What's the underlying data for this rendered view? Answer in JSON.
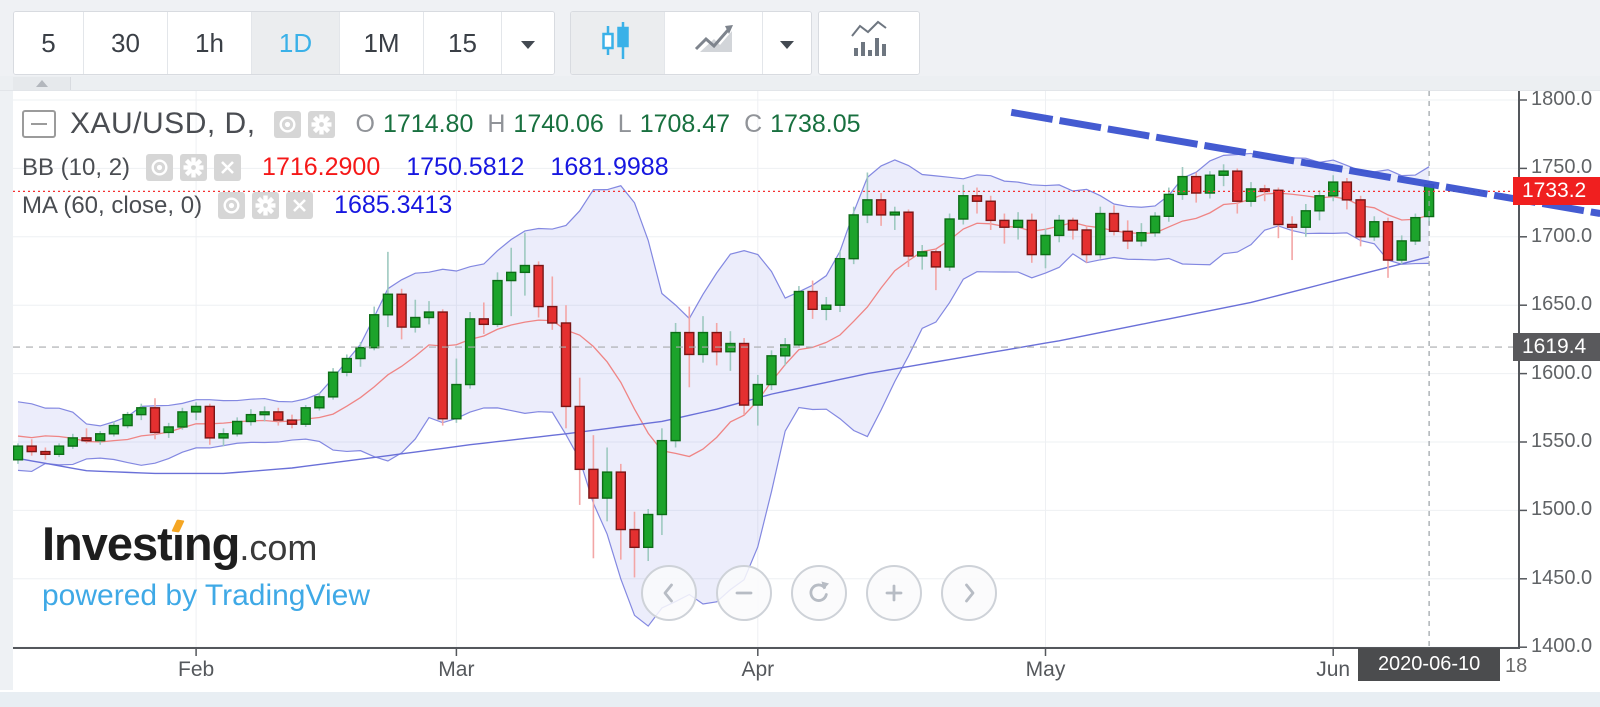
{
  "toolbar": {
    "timeframes": [
      "5",
      "30",
      "1h",
      "1D",
      "1M",
      "15"
    ],
    "active_timeframe": "1D",
    "icons": [
      "chevron-down-icon",
      "candlestick-chart-icon",
      "line-area-chart-icon",
      "chevron-down-icon",
      "indicators-icon"
    ],
    "active_chart_type": "candlestick"
  },
  "legend": {
    "symbol_title": "XAU/USD, D,",
    "ohlc": {
      "open_label": "O",
      "open": "1714.80",
      "high_label": "H",
      "high": "1740.06",
      "low_label": "L",
      "low": "1708.47",
      "close_label": "C",
      "close": "1738.05"
    },
    "bb": {
      "label": "BB (10, 2)",
      "basis": "1716.2900",
      "upper": "1750.5812",
      "lower": "1681.9988"
    },
    "ma": {
      "label": "MA (60, close, 0)",
      "value": "1685.3413"
    }
  },
  "watermark": {
    "brand_text_pre": "Invest",
    "brand_text_post": "ng",
    "brand_suffix": ".com",
    "powered_text": "powered by TradingView"
  },
  "nav_buttons": [
    "chevron-left-icon",
    "zoom-out-icon",
    "refresh-icon",
    "zoom-in-icon",
    "chevron-right-icon"
  ],
  "price_axis": {
    "tick_labels": [
      "1800.0",
      "1750.0",
      "1700.0",
      "1650.0",
      "1600.0",
      "1550.0",
      "1500.0",
      "1450.0",
      "1400.0"
    ],
    "current_price_label": "1733.2",
    "level_label": "1619.4"
  },
  "time_axis": {
    "month_labels": [
      "Feb",
      "Mar",
      "Apr",
      "May",
      "Jun"
    ],
    "crosshair_date_label": "2020-06-10",
    "clipped_label": "18"
  },
  "colors": {
    "accent_blue": "#3ab1e8",
    "candle_up_fill": "#1ca32b",
    "candle_up_stroke": "#0d6d17",
    "candle_up_wick": "#9ec9c0",
    "candle_down_fill": "#e43030",
    "candle_down_stroke": "#7a1616",
    "candle_down_wick": "#f3a6a6",
    "bb_fill": "rgba(110,116,222,0.13)",
    "bb_stroke": "rgba(110,116,220,0.85)",
    "bb_basis": "#ef8585",
    "ma_line": "#6a70d8",
    "trendline": "#3a53cf",
    "price_line": "#f53030",
    "level_line": "#a9abad",
    "grid": "#eef0f3",
    "axis": "#54575c",
    "badge_price_bg": "#f01f1f",
    "badge_level_bg": "#59595c",
    "badge_date_bg": "#4b4c4e"
  },
  "chart_data": {
    "type": "candlestick",
    "symbol": "XAU/USD",
    "interval": "D",
    "title": "XAU/USD, D",
    "ylim": [
      1399,
      1809
    ],
    "y_ticks": [
      1800,
      1750,
      1700,
      1650,
      1600,
      1550,
      1500,
      1450,
      1400
    ],
    "x_ticks": [
      {
        "label": "Feb",
        "day": 13
      },
      {
        "label": "Mar",
        "day": 32
      },
      {
        "label": "Apr",
        "day": 54
      },
      {
        "label": "May",
        "day": 75
      },
      {
        "label": "Jun",
        "day": 96
      }
    ],
    "grid": true,
    "lead_in_closes": [
      1528,
      1552,
      1566,
      1574,
      1560,
      1552,
      1562,
      1548
    ],
    "candles": [
      [
        1537,
        1549,
        1534,
        1547
      ],
      [
        1547,
        1552,
        1540,
        1543
      ],
      [
        1543,
        1546,
        1537,
        1541
      ],
      [
        1541,
        1549,
        1539,
        1547
      ],
      [
        1547,
        1556,
        1545,
        1553
      ],
      [
        1553,
        1560,
        1549,
        1551
      ],
      [
        1551,
        1558,
        1548,
        1556
      ],
      [
        1556,
        1565,
        1554,
        1562
      ],
      [
        1562,
        1572,
        1560,
        1570
      ],
      [
        1570,
        1578,
        1566,
        1575
      ],
      [
        1575,
        1582,
        1552,
        1557
      ],
      [
        1557,
        1564,
        1553,
        1561
      ],
      [
        1561,
        1575,
        1559,
        1572
      ],
      [
        1572,
        1579,
        1566,
        1576
      ],
      [
        1576,
        1578,
        1548,
        1553
      ],
      [
        1553,
        1560,
        1547,
        1556
      ],
      [
        1556,
        1568,
        1554,
        1565
      ],
      [
        1565,
        1574,
        1562,
        1570
      ],
      [
        1570,
        1576,
        1565,
        1572
      ],
      [
        1572,
        1575,
        1562,
        1566
      ],
      [
        1566,
        1570,
        1560,
        1563
      ],
      [
        1563,
        1577,
        1561,
        1575
      ],
      [
        1575,
        1586,
        1573,
        1583
      ],
      [
        1583,
        1604,
        1581,
        1601
      ],
      [
        1601,
        1614,
        1598,
        1611
      ],
      [
        1611,
        1623,
        1605,
        1619
      ],
      [
        1619,
        1649,
        1617,
        1643
      ],
      [
        1643,
        1689,
        1634,
        1658
      ],
      [
        1658,
        1662,
        1625,
        1634
      ],
      [
        1634,
        1654,
        1630,
        1641
      ],
      [
        1641,
        1653,
        1636,
        1645
      ],
      [
        1645,
        1647,
        1562,
        1567
      ],
      [
        1567,
        1611,
        1564,
        1592
      ],
      [
        1592,
        1645,
        1589,
        1640
      ],
      [
        1640,
        1652,
        1629,
        1636
      ],
      [
        1636,
        1674,
        1634,
        1668
      ],
      [
        1668,
        1692,
        1642,
        1674
      ],
      [
        1674,
        1703,
        1657,
        1679
      ],
      [
        1679,
        1682,
        1641,
        1649
      ],
      [
        1649,
        1671,
        1632,
        1637
      ],
      [
        1637,
        1650,
        1560,
        1576
      ],
      [
        1576,
        1597,
        1504,
        1530
      ],
      [
        1530,
        1555,
        1465,
        1509
      ],
      [
        1509,
        1546,
        1492,
        1528
      ],
      [
        1528,
        1534,
        1464,
        1486
      ],
      [
        1486,
        1499,
        1451,
        1473
      ],
      [
        1473,
        1501,
        1463,
        1497
      ],
      [
        1497,
        1560,
        1482,
        1551
      ],
      [
        1551,
        1637,
        1546,
        1630
      ],
      [
        1630,
        1649,
        1590,
        1614
      ],
      [
        1614,
        1642,
        1608,
        1630
      ],
      [
        1630,
        1637,
        1606,
        1616
      ],
      [
        1616,
        1631,
        1602,
        1622
      ],
      [
        1622,
        1626,
        1570,
        1577
      ],
      [
        1577,
        1599,
        1562,
        1592
      ],
      [
        1592,
        1617,
        1588,
        1613
      ],
      [
        1613,
        1626,
        1606,
        1621
      ],
      [
        1621,
        1664,
        1620,
        1660
      ],
      [
        1660,
        1668,
        1640,
        1647
      ],
      [
        1647,
        1656,
        1639,
        1650
      ],
      [
        1650,
        1690,
        1645,
        1684
      ],
      [
        1684,
        1722,
        1680,
        1716
      ],
      [
        1716,
        1747,
        1710,
        1727
      ],
      [
        1727,
        1732,
        1708,
        1716
      ],
      [
        1716,
        1722,
        1705,
        1718
      ],
      [
        1718,
        1720,
        1678,
        1686
      ],
      [
        1686,
        1694,
        1676,
        1689
      ],
      [
        1689,
        1691,
        1661,
        1678
      ],
      [
        1678,
        1717,
        1675,
        1713
      ],
      [
        1713,
        1738,
        1709,
        1730
      ],
      [
        1730,
        1736,
        1717,
        1726
      ],
      [
        1726,
        1730,
        1705,
        1712
      ],
      [
        1712,
        1717,
        1695,
        1707
      ],
      [
        1707,
        1718,
        1698,
        1712
      ],
      [
        1712,
        1717,
        1681,
        1687
      ],
      [
        1687,
        1706,
        1677,
        1701
      ],
      [
        1701,
        1716,
        1696,
        1712
      ],
      [
        1712,
        1714,
        1698,
        1705
      ],
      [
        1705,
        1708,
        1681,
        1687
      ],
      [
        1687,
        1722,
        1684,
        1717
      ],
      [
        1717,
        1723,
        1701,
        1704
      ],
      [
        1704,
        1712,
        1691,
        1697
      ],
      [
        1697,
        1710,
        1693,
        1703
      ],
      [
        1703,
        1718,
        1700,
        1715
      ],
      [
        1715,
        1736,
        1711,
        1731
      ],
      [
        1731,
        1751,
        1727,
        1744
      ],
      [
        1744,
        1747,
        1725,
        1732
      ],
      [
        1732,
        1748,
        1728,
        1745
      ],
      [
        1745,
        1753,
        1737,
        1748
      ],
      [
        1748,
        1750,
        1717,
        1726
      ],
      [
        1726,
        1740,
        1722,
        1735
      ],
      [
        1735,
        1738,
        1726,
        1734
      ],
      [
        1734,
        1736,
        1699,
        1709
      ],
      [
        1709,
        1715,
        1683,
        1707
      ],
      [
        1707,
        1724,
        1700,
        1719
      ],
      [
        1719,
        1734,
        1712,
        1730
      ],
      [
        1730,
        1745,
        1726,
        1740
      ],
      [
        1740,
        1743,
        1720,
        1727
      ],
      [
        1727,
        1730,
        1693,
        1700
      ],
      [
        1700,
        1715,
        1697,
        1711
      ],
      [
        1711,
        1714,
        1670,
        1683
      ],
      [
        1683,
        1701,
        1680,
        1697
      ],
      [
        1697,
        1717,
        1694,
        1714
      ],
      [
        1714.8,
        1740.06,
        1708.47,
        1738.05
      ]
    ],
    "indicators": {
      "bollinger": {
        "label": "BB (10, 2)",
        "period": 10,
        "mult": 2,
        "last": {
          "basis": 1716.29,
          "upper": 1750.5812,
          "lower": 1681.9988
        }
      },
      "ma": {
        "label": "MA (60, close, 0)",
        "period": 60,
        "source": "close",
        "offset": 0,
        "last": 1685.3413,
        "points": [
          [
            0,
            1538
          ],
          [
            5,
            1529
          ],
          [
            10,
            1527
          ],
          [
            15,
            1527
          ],
          [
            20,
            1531
          ],
          [
            27,
            1540
          ],
          [
            33,
            1548
          ],
          [
            40,
            1556
          ],
          [
            47,
            1565
          ],
          [
            51,
            1574
          ],
          [
            55,
            1585
          ],
          [
            62,
            1600
          ],
          [
            69,
            1612
          ],
          [
            76,
            1624
          ],
          [
            83,
            1638
          ],
          [
            90,
            1652
          ],
          [
            97,
            1670
          ],
          [
            103,
            1685.34
          ]
        ]
      }
    },
    "levels": {
      "current_price": 1733.2,
      "dashed_level": 1619.4
    },
    "crosshair_day": 103,
    "trendline": {
      "from": {
        "day": 72.5,
        "price": 1791
      },
      "to": {
        "day": 115.5,
        "price": 1717
      }
    }
  }
}
